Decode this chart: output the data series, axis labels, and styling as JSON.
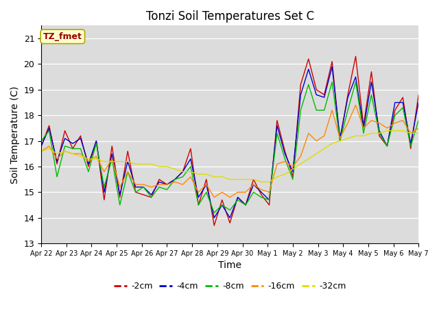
{
  "title": "Tonzi Soil Temperatures Set C",
  "xlabel": "Time",
  "ylabel": "Soil Temperature (C)",
  "annotation": "TZ_fmet",
  "ylim": [
    13.0,
    21.5
  ],
  "yticks": [
    13.0,
    14.0,
    15.0,
    16.0,
    17.0,
    18.0,
    19.0,
    20.0,
    21.0
  ],
  "background_color": "#dcdcdc",
  "plot_bg": "#dcdcdc",
  "line_colors": {
    "-2cm": "#cc0000",
    "-4cm": "#0000cc",
    "-8cm": "#00bb00",
    "-16cm": "#ff8800",
    "-32cm": "#dddd00"
  },
  "xtick_labels": [
    "Apr 22",
    "Apr 23",
    "Apr 24",
    "Apr 25",
    "Apr 26",
    "Apr 27",
    "Apr 28",
    "Apr 29",
    "Apr 30",
    "May 1",
    "May 2",
    "May 3",
    "May 4",
    "May 5",
    "May 6",
    "May 7"
  ],
  "temp_2cm": [
    16.8,
    17.6,
    16.1,
    17.4,
    16.7,
    17.2,
    16.0,
    17.0,
    14.7,
    16.8,
    14.8,
    16.6,
    15.0,
    14.9,
    14.8,
    15.5,
    15.3,
    15.5,
    15.8,
    16.7,
    14.5,
    15.5,
    13.7,
    14.7,
    13.8,
    14.8,
    14.5,
    15.5,
    14.9,
    14.5,
    17.8,
    16.6,
    15.6,
    19.2,
    20.2,
    19.0,
    18.8,
    20.1,
    17.0,
    18.8,
    20.3,
    17.6,
    19.7,
    17.2,
    16.8,
    18.2,
    18.7,
    16.7,
    18.8
  ],
  "temp_4cm": [
    16.8,
    17.5,
    16.2,
    17.1,
    16.9,
    17.1,
    16.1,
    17.0,
    15.0,
    16.5,
    14.9,
    16.2,
    15.2,
    15.2,
    14.9,
    15.4,
    15.3,
    15.5,
    15.8,
    16.3,
    14.8,
    15.3,
    14.0,
    14.5,
    14.0,
    14.8,
    14.5,
    15.3,
    15.0,
    14.7,
    17.6,
    16.5,
    15.8,
    18.8,
    19.8,
    18.8,
    18.7,
    19.9,
    17.1,
    18.7,
    19.5,
    17.5,
    19.3,
    17.4,
    16.8,
    18.5,
    18.5,
    16.9,
    18.5
  ],
  "temp_8cm": [
    17.0,
    17.4,
    15.6,
    16.8,
    16.7,
    16.7,
    15.8,
    16.9,
    15.2,
    16.3,
    14.5,
    15.8,
    15.0,
    15.2,
    14.8,
    15.2,
    15.1,
    15.5,
    15.6,
    16.0,
    14.5,
    15.0,
    14.2,
    14.5,
    14.3,
    14.7,
    14.5,
    15.0,
    14.8,
    14.7,
    17.3,
    16.3,
    15.5,
    18.2,
    19.2,
    18.2,
    18.2,
    19.3,
    17.0,
    18.2,
    19.3,
    17.3,
    18.8,
    17.3,
    16.8,
    18.0,
    18.3,
    16.8,
    17.8
  ],
  "temp_16cm": [
    16.6,
    16.8,
    16.3,
    16.6,
    16.5,
    16.5,
    16.2,
    16.4,
    15.8,
    16.3,
    15.2,
    15.8,
    15.3,
    15.3,
    15.2,
    15.3,
    15.3,
    15.4,
    15.3,
    15.6,
    15.0,
    15.3,
    14.8,
    15.0,
    14.8,
    15.0,
    15.0,
    15.3,
    15.1,
    15.0,
    16.1,
    16.2,
    16.0,
    16.4,
    17.3,
    17.0,
    17.2,
    18.2,
    17.1,
    17.7,
    18.4,
    17.5,
    17.8,
    17.7,
    17.5,
    17.7,
    17.8,
    17.3,
    17.5
  ],
  "temp_32cm": [
    16.6,
    16.7,
    16.5,
    16.6,
    16.5,
    16.4,
    16.3,
    16.3,
    16.2,
    16.2,
    16.2,
    16.2,
    16.1,
    16.1,
    16.1,
    16.0,
    16.0,
    15.9,
    15.8,
    15.8,
    15.7,
    15.7,
    15.6,
    15.6,
    15.5,
    15.5,
    15.5,
    15.5,
    15.4,
    15.4,
    15.6,
    15.7,
    15.9,
    16.1,
    16.3,
    16.5,
    16.7,
    16.9,
    17.0,
    17.1,
    17.2,
    17.2,
    17.3,
    17.3,
    17.4,
    17.4,
    17.4,
    17.3,
    17.3
  ]
}
